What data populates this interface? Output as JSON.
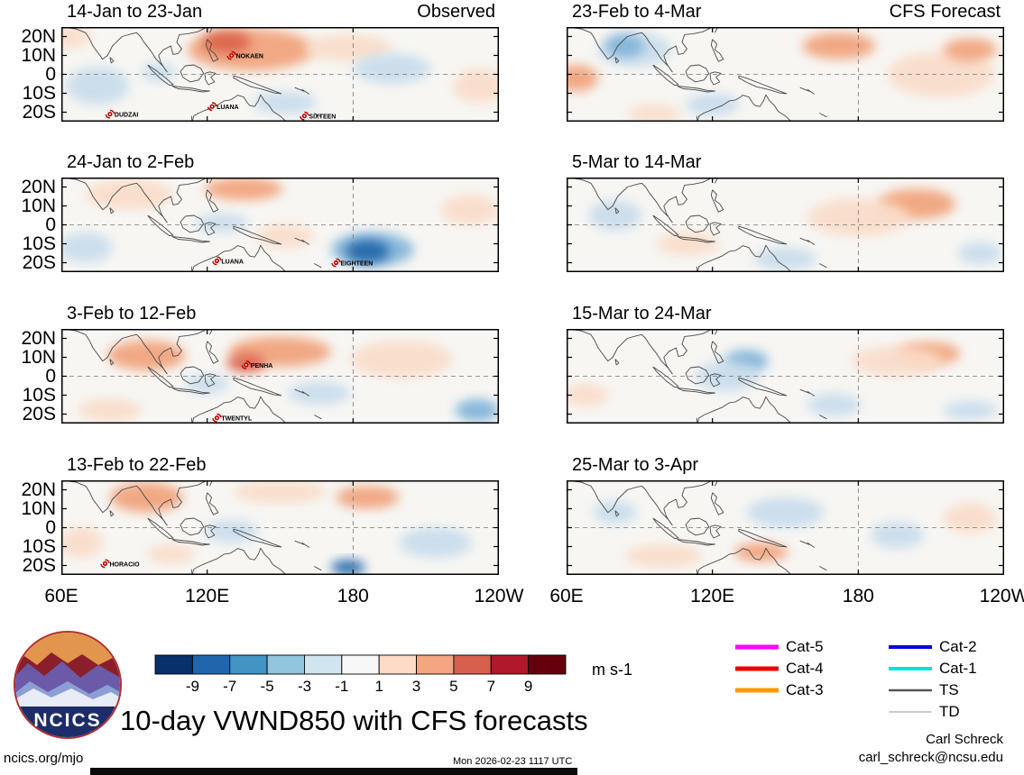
{
  "figure": {
    "title": "10-day VWND850 with CFS forecasts",
    "units_label": "m s-1",
    "logo_text": "NCICS",
    "footer": {
      "left": "ncics.org/mjo",
      "center": "Mon 2026-02-23 1117 UTC",
      "credit_name": "Carl Schreck",
      "credit_email": "carl_schreck@ncsu.edu"
    }
  },
  "chart_data": {
    "type": "heatmap",
    "variable": "VWND850",
    "description": "10-day mean 850-hPa meridional wind anomalies, observed and CFS forecast, with tropical cyclone positions",
    "units": "m s-1",
    "x_axis": {
      "ticks": [
        "60E",
        "120E",
        "180",
        "120W"
      ],
      "tick_lons": [
        60,
        120,
        180,
        240
      ],
      "range_lon": [
        60,
        240
      ]
    },
    "y_axis": {
      "ticks": [
        "20N",
        "10N",
        "0",
        "10S",
        "20S"
      ],
      "tick_lats": [
        20,
        10,
        0,
        -10,
        -20
      ],
      "range_lat": [
        25,
        -25
      ]
    },
    "colorbar": {
      "ticks": [
        -9,
        -7,
        -5,
        -3,
        -1,
        1,
        3,
        5,
        7,
        9
      ],
      "colors": [
        "#08306b",
        "#2166ac",
        "#4393c3",
        "#92c5de",
        "#d1e5f0",
        "#f7f7f7",
        "#fddbc7",
        "#f4a582",
        "#d6604d",
        "#b2182b",
        "#67000d"
      ],
      "label": "m s-1"
    },
    "column_tags": {
      "observed": "Observed",
      "forecast": "CFS Forecast"
    },
    "panels": [
      {
        "title": "14-Jan to 23-Jan",
        "tag": "Observed",
        "row": 0,
        "col": 0,
        "storms": [
          {
            "name": "NOKAEN",
            "lon": 130,
            "lat": 10
          },
          {
            "name": "DUDZAI",
            "lon": 80,
            "lat": -21
          },
          {
            "name": "LUANA",
            "lon": 122,
            "lat": -17
          },
          {
            "name": "SIXTEEN",
            "lon": 160,
            "lat": -22
          }
        ],
        "anomaly_blobs": [
          {
            "lon": 63,
            "lat": 20,
            "rlon": 9,
            "rlat": 6,
            "level": "p1"
          },
          {
            "lon": 138,
            "lat": 13,
            "rlon": 26,
            "rlat": 11,
            "level": "p2"
          },
          {
            "lon": 128,
            "lat": 17,
            "rlon": 10,
            "rlat": 6,
            "level": "p3"
          },
          {
            "lon": 178,
            "lat": 14,
            "rlon": 18,
            "rlat": 7,
            "level": "p1"
          },
          {
            "lon": 75,
            "lat": -6,
            "rlon": 13,
            "rlat": 10,
            "level": "n1"
          },
          {
            "lon": 100,
            "lat": 1,
            "rlon": 7,
            "rlat": 5,
            "level": "n1"
          },
          {
            "lon": 196,
            "lat": 3,
            "rlon": 16,
            "rlat": 8,
            "level": "n1"
          },
          {
            "lon": 152,
            "lat": -15,
            "rlon": 13,
            "rlat": 6,
            "level": "n1"
          },
          {
            "lon": 232,
            "lat": -6,
            "rlon": 11,
            "rlat": 9,
            "level": "p1"
          }
        ]
      },
      {
        "title": "24-Jan to 2-Feb",
        "tag": "",
        "row": 1,
        "col": 0,
        "storms": [
          {
            "name": "LUANA",
            "lon": 124,
            "lat": -19
          },
          {
            "name": "EIGHTEEN",
            "lon": 173,
            "lat": -20
          }
        ],
        "anomaly_blobs": [
          {
            "lon": 88,
            "lat": 16,
            "rlon": 18,
            "rlat": 8,
            "level": "p1"
          },
          {
            "lon": 135,
            "lat": 19,
            "rlon": 16,
            "rlat": 6,
            "level": "p2"
          },
          {
            "lon": 70,
            "lat": -12,
            "rlon": 11,
            "rlat": 8,
            "level": "n1"
          },
          {
            "lon": 126,
            "lat": 1,
            "rlon": 11,
            "rlat": 5,
            "level": "n1"
          },
          {
            "lon": 152,
            "lat": -6,
            "rlon": 12,
            "rlat": 6,
            "level": "p1"
          },
          {
            "lon": 188,
            "lat": -13,
            "rlon": 17,
            "rlat": 9,
            "level": "n2"
          },
          {
            "lon": 186,
            "lat": -14,
            "rlon": 9,
            "rlat": 6,
            "level": "n3"
          },
          {
            "lon": 228,
            "lat": 8,
            "rlon": 12,
            "rlat": 8,
            "level": "p1"
          }
        ]
      },
      {
        "title": "3-Feb to 12-Feb",
        "tag": "",
        "row": 2,
        "col": 0,
        "storms": [
          {
            "name": "PENHA",
            "lon": 136,
            "lat": 6
          },
          {
            "name": "TWENTYL",
            "lon": 124,
            "lat": -22
          }
        ],
        "anomaly_blobs": [
          {
            "lon": 95,
            "lat": 11,
            "rlon": 16,
            "rlat": 8,
            "level": "p2"
          },
          {
            "lon": 150,
            "lat": 13,
            "rlon": 21,
            "rlat": 8,
            "level": "p2"
          },
          {
            "lon": 136,
            "lat": 7,
            "rlon": 8,
            "rlat": 5,
            "level": "p3"
          },
          {
            "lon": 200,
            "lat": 9,
            "rlon": 21,
            "rlat": 10,
            "level": "p1"
          },
          {
            "lon": 166,
            "lat": -9,
            "rlon": 13,
            "rlat": 6,
            "level": "n1"
          },
          {
            "lon": 231,
            "lat": -18,
            "rlon": 9,
            "rlat": 6,
            "level": "n2"
          },
          {
            "lon": 80,
            "lat": -18,
            "rlon": 13,
            "rlat": 6,
            "level": "p1"
          },
          {
            "lon": 120,
            "lat": -4,
            "rlon": 9,
            "rlat": 5,
            "level": "n1"
          }
        ]
      },
      {
        "title": "13-Feb to 22-Feb",
        "tag": "",
        "row": 3,
        "col": 0,
        "storms": [
          {
            "name": "HORACIO",
            "lon": 78,
            "lat": -19
          }
        ],
        "anomaly_blobs": [
          {
            "lon": 95,
            "lat": 16,
            "rlon": 15,
            "rlat": 8,
            "level": "p2"
          },
          {
            "lon": 150,
            "lat": 19,
            "rlon": 19,
            "rlat": 6,
            "level": "p1"
          },
          {
            "lon": 186,
            "lat": 16,
            "rlon": 13,
            "rlat": 6,
            "level": "p2"
          },
          {
            "lon": 130,
            "lat": -2,
            "rlon": 11,
            "rlat": 6,
            "level": "n1"
          },
          {
            "lon": 178,
            "lat": -21,
            "rlon": 7,
            "rlat": 4,
            "level": "n3"
          },
          {
            "lon": 214,
            "lat": -8,
            "rlon": 15,
            "rlat": 8,
            "level": "n1"
          },
          {
            "lon": 68,
            "lat": -8,
            "rlon": 9,
            "rlat": 8,
            "level": "p1"
          },
          {
            "lon": 105,
            "lat": -14,
            "rlon": 10,
            "rlat": 5,
            "level": "p1"
          }
        ]
      },
      {
        "title": "23-Feb to 4-Mar",
        "tag": "CFS Forecast",
        "row": 0,
        "col": 1,
        "storms": [],
        "anomaly_blobs": [
          {
            "lon": 88,
            "lat": 13,
            "rlon": 15,
            "rlat": 9,
            "level": "n1"
          },
          {
            "lon": 84,
            "lat": 15,
            "rlon": 8,
            "rlat": 6,
            "level": "n2"
          },
          {
            "lon": 64,
            "lat": -2,
            "rlon": 9,
            "rlat": 7,
            "level": "p2"
          },
          {
            "lon": 172,
            "lat": 15,
            "rlon": 15,
            "rlat": 7,
            "level": "p2"
          },
          {
            "lon": 214,
            "lat": 0,
            "rlon": 22,
            "rlat": 12,
            "level": "p1"
          },
          {
            "lon": 226,
            "lat": 13,
            "rlon": 11,
            "rlat": 6,
            "level": "p2"
          },
          {
            "lon": 120,
            "lat": -16,
            "rlon": 11,
            "rlat": 6,
            "level": "n1"
          },
          {
            "lon": 96,
            "lat": -21,
            "rlon": 11,
            "rlat": 5,
            "level": "p1"
          }
        ]
      },
      {
        "title": "5-Mar to 14-Mar",
        "tag": "",
        "row": 1,
        "col": 1,
        "storms": [],
        "anomaly_blobs": [
          {
            "lon": 204,
            "lat": 11,
            "rlon": 16,
            "rlat": 8,
            "level": "p2"
          },
          {
            "lon": 180,
            "lat": 4,
            "rlon": 21,
            "rlat": 10,
            "level": "p1"
          },
          {
            "lon": 80,
            "lat": 5,
            "rlon": 11,
            "rlat": 8,
            "level": "n1"
          },
          {
            "lon": 150,
            "lat": -18,
            "rlon": 13,
            "rlat": 6,
            "level": "n1"
          },
          {
            "lon": 110,
            "lat": -10,
            "rlon": 13,
            "rlat": 6,
            "level": "p1"
          },
          {
            "lon": 230,
            "lat": -15,
            "rlon": 9,
            "rlat": 6,
            "level": "n1"
          }
        ]
      },
      {
        "title": "15-Mar to 24-Mar",
        "tag": "",
        "row": 2,
        "col": 1,
        "storms": [],
        "anomaly_blobs": [
          {
            "lon": 134,
            "lat": 8,
            "rlon": 9,
            "rlat": 6,
            "level": "n2"
          },
          {
            "lon": 126,
            "lat": 0,
            "rlon": 13,
            "rlat": 8,
            "level": "n1"
          },
          {
            "lon": 209,
            "lat": 12,
            "rlon": 13,
            "rlat": 6,
            "level": "p2"
          },
          {
            "lon": 196,
            "lat": 8,
            "rlon": 19,
            "rlat": 8,
            "level": "p1"
          },
          {
            "lon": 170,
            "lat": -15,
            "rlon": 11,
            "rlat": 6,
            "level": "n1"
          },
          {
            "lon": 68,
            "lat": -10,
            "rlon": 9,
            "rlat": 6,
            "level": "p1"
          },
          {
            "lon": 226,
            "lat": -18,
            "rlon": 11,
            "rlat": 5,
            "level": "n1"
          }
        ]
      },
      {
        "title": "25-Mar to 3-Apr",
        "tag": "",
        "row": 3,
        "col": 1,
        "storms": [],
        "anomaly_blobs": [
          {
            "lon": 150,
            "lat": 8,
            "rlon": 16,
            "rlat": 8,
            "level": "n1"
          },
          {
            "lon": 196,
            "lat": -4,
            "rlon": 11,
            "rlat": 7,
            "level": "n1"
          },
          {
            "lon": 100,
            "lat": -15,
            "rlon": 16,
            "rlat": 6,
            "level": "p1"
          },
          {
            "lon": 140,
            "lat": -13,
            "rlon": 11,
            "rlat": 5,
            "level": "p2"
          },
          {
            "lon": 226,
            "lat": 5,
            "rlon": 11,
            "rlat": 8,
            "level": "p1"
          },
          {
            "lon": 80,
            "lat": 8,
            "rlon": 9,
            "rlat": 6,
            "level": "n1"
          }
        ]
      }
    ]
  },
  "legend": {
    "items": [
      {
        "label": "Cat-5",
        "color": "#ff00ff",
        "thickness": 5,
        "column": 1
      },
      {
        "label": "Cat-4",
        "color": "#ee0000",
        "thickness": 5,
        "column": 1
      },
      {
        "label": "Cat-3",
        "color": "#ff9900",
        "thickness": 5,
        "column": 1
      },
      {
        "label": "Cat-2",
        "color": "#0000dd",
        "thickness": 4,
        "column": 2
      },
      {
        "label": "Cat-1",
        "color": "#00e0e0",
        "thickness": 4,
        "column": 2
      },
      {
        "label": "TS",
        "color": "#555555",
        "thickness": 2.5,
        "column": 2
      },
      {
        "label": "TD",
        "color": "#aaaaaa",
        "thickness": 1.2,
        "column": 2
      }
    ]
  }
}
